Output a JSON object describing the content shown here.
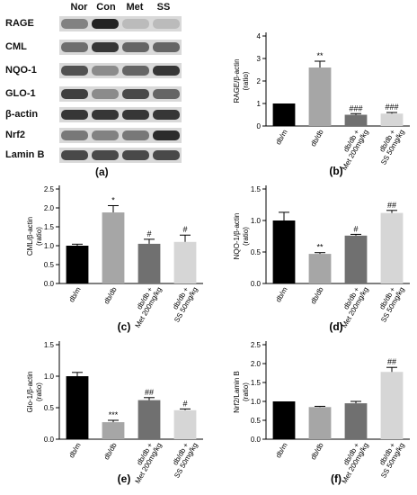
{
  "blot": {
    "columns": [
      "Nor",
      "Con",
      "Met",
      "SS"
    ],
    "rows": [
      {
        "label": "RAGE",
        "intensity": [
          0.45,
          0.95,
          0.15,
          0.15
        ]
      },
      {
        "label": "CML",
        "intensity": [
          0.55,
          0.85,
          0.6,
          0.6
        ]
      },
      {
        "label": "NQO-1",
        "intensity": [
          0.7,
          0.4,
          0.6,
          0.85
        ]
      },
      {
        "label": "GLO-1",
        "intensity": [
          0.8,
          0.4,
          0.75,
          0.6
        ]
      },
      {
        "label": "β-actin",
        "intensity": [
          0.85,
          0.85,
          0.85,
          0.85
        ]
      },
      {
        "label": "Nrf2",
        "intensity": [
          0.5,
          0.45,
          0.5,
          0.9
        ]
      },
      {
        "label": "Lamin B",
        "intensity": [
          0.75,
          0.75,
          0.75,
          0.75
        ]
      }
    ],
    "panel_label": "(a)"
  },
  "chart_data": [
    {
      "type": "bar",
      "panel_label": "(b)",
      "categories": [
        "db/m",
        "db/db",
        "db/db + Met 200mg/kg",
        "db/db + SS 50mg/kg"
      ],
      "values": [
        1.0,
        2.6,
        0.5,
        0.55
      ],
      "errors": [
        0.0,
        0.28,
        0.05,
        0.05
      ],
      "significance": [
        "",
        "**",
        "###",
        "###"
      ],
      "ylabel": "RAGE/β-actin\n(ratio)",
      "ylim": [
        0,
        4
      ],
      "yticks": [
        0,
        1,
        2,
        3,
        4
      ],
      "colors": [
        "#000000",
        "#a6a6a6",
        "#707070",
        "#d6d6d6"
      ]
    },
    {
      "type": "bar",
      "panel_label": "(c)",
      "categories": [
        "db/m",
        "db/db",
        "db/db + Met 200mg/kg",
        "db/db + SS 50mg/kg"
      ],
      "values": [
        1.0,
        1.88,
        1.05,
        1.1
      ],
      "errors": [
        0.04,
        0.18,
        0.12,
        0.18
      ],
      "significance": [
        "",
        "*",
        "#",
        "#"
      ],
      "ylabel": "CML/β-actin\n(ratio)",
      "ylim": [
        0,
        2.5
      ],
      "yticks": [
        0,
        0.5,
        1.0,
        1.5,
        2.0,
        2.5
      ],
      "colors": [
        "#000000",
        "#a6a6a6",
        "#707070",
        "#d6d6d6"
      ]
    },
    {
      "type": "bar",
      "panel_label": "(d)",
      "categories": [
        "db/m",
        "db/db",
        "db/db + Met 200mg/kg",
        "db/db + SS 50mg/kg"
      ],
      "values": [
        1.0,
        0.47,
        0.76,
        1.12
      ],
      "errors": [
        0.13,
        0.02,
        0.02,
        0.04
      ],
      "significance": [
        "",
        "**",
        "#",
        "##"
      ],
      "ylabel": "NQO-1/β-actin\n(ratio)",
      "ylim": [
        0,
        1.5
      ],
      "yticks": [
        0,
        0.5,
        1.0,
        1.5
      ],
      "colors": [
        "#000000",
        "#a6a6a6",
        "#707070",
        "#d6d6d6"
      ]
    },
    {
      "type": "bar",
      "panel_label": "(e)",
      "categories": [
        "db/m",
        "db/db",
        "db/db + Met 200mg/kg",
        "db/db + SS 50mg/kg"
      ],
      "values": [
        1.0,
        0.27,
        0.62,
        0.46
      ],
      "errors": [
        0.06,
        0.03,
        0.04,
        0.02
      ],
      "significance": [
        "",
        "***",
        "##",
        "#"
      ],
      "ylabel": "Glo-1/β-actin\n(ratio)",
      "ylim": [
        0,
        1.5
      ],
      "yticks": [
        0,
        0.5,
        1.0,
        1.5
      ],
      "colors": [
        "#000000",
        "#a6a6a6",
        "#707070",
        "#d6d6d6"
      ]
    },
    {
      "type": "bar",
      "panel_label": "(f)",
      "categories": [
        "db/m",
        "db/db",
        "db/db + Met 200mg/kg",
        "db/db + SS 50mg/kg"
      ],
      "values": [
        1.0,
        0.85,
        0.95,
        1.78
      ],
      "errors": [
        0.0,
        0.02,
        0.05,
        0.12
      ],
      "significance": [
        "",
        "",
        "",
        "##"
      ],
      "ylabel": "Nrf2/Lamin B\n(ratio)",
      "ylim": [
        0,
        2.5
      ],
      "yticks": [
        0,
        0.5,
        1.0,
        1.5,
        2.0,
        2.5
      ],
      "colors": [
        "#000000",
        "#a6a6a6",
        "#707070",
        "#d6d6d6"
      ]
    }
  ]
}
